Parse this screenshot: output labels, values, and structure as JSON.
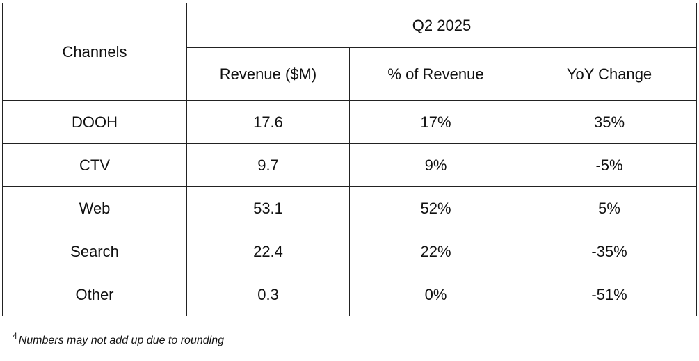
{
  "chart_data": {
    "type": "table",
    "columns": [
      "Channels",
      "Revenue ($M)",
      "% of Revenue",
      "YoY Change"
    ],
    "group_header": "Q2 2025",
    "rows": [
      {
        "channel": "DOOH",
        "revenue": "17.6",
        "pct": "17%",
        "yoy": "35%"
      },
      {
        "channel": "CTV",
        "revenue": "9.7",
        "pct": "9%",
        "yoy": "-5%"
      },
      {
        "channel": "Web",
        "revenue": "53.1",
        "pct": "52%",
        "yoy": "5%"
      },
      {
        "channel": "Search",
        "revenue": "22.4",
        "pct": "22%",
        "yoy": "-35%"
      },
      {
        "channel": "Other",
        "revenue": "0.3",
        "pct": "0%",
        "yoy": "-51%"
      }
    ]
  },
  "footnote": {
    "marker": "4",
    "text": "Numbers may not add up due to rounding"
  }
}
